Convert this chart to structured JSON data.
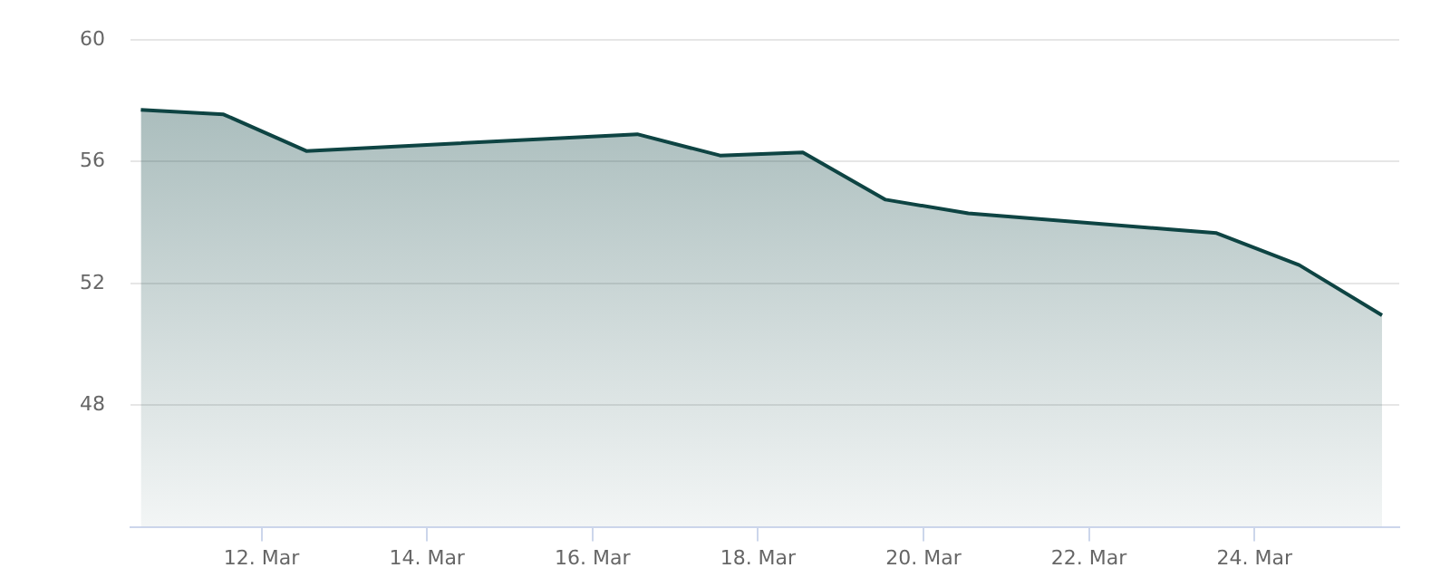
{
  "chart_data": {
    "type": "area",
    "x": [
      "--03-10T13:00",
      "--03-11T13:00",
      "--03-12T13:00",
      "--03-16T13:00",
      "--03-17T13:00",
      "--03-18T13:00",
      "--03-19T13:00",
      "--03-20T13:00",
      "--03-23T13:00",
      "--03-24T13:00",
      "--03-25T13:00"
    ],
    "series": [
      {
        "color": "#0e4443",
        "values": [
          57.7,
          57.55,
          56.35,
          56.9,
          56.2,
          56.3,
          54.75,
          54.3,
          53.65,
          52.6,
          50.95
        ]
      }
    ],
    "xlim": [
      "--03-10T10:00",
      "--03-25T18:00"
    ],
    "xticks": [
      {
        "value": "--03-12",
        "label": "12. Mar"
      },
      {
        "value": "--03-14",
        "label": "14. Mar"
      },
      {
        "value": "--03-16",
        "label": "16. Mar"
      },
      {
        "value": "--03-18",
        "label": "18. Mar"
      },
      {
        "value": "--03-20",
        "label": "20. Mar"
      },
      {
        "value": "--03-22",
        "label": "22. Mar"
      },
      {
        "value": "--03-24",
        "label": "24. Mar"
      }
    ],
    "ylim": [
      44,
      60
    ],
    "yticks": [
      48,
      52,
      56,
      60
    ],
    "grid": "y",
    "legend": false,
    "marker": "none"
  }
}
